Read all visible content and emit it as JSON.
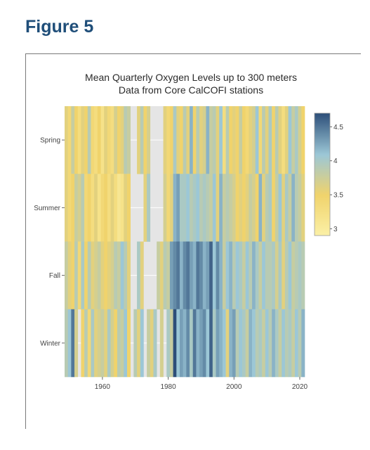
{
  "page": {
    "heading": "Figure 5"
  },
  "chart_data": {
    "type": "heatmap",
    "title": "Mean Quarterly Oxygen Levels up to 300 meters",
    "subtitle": "Data from Core CalCOFI stations",
    "xlabel": "",
    "ylabel": "",
    "rows": [
      "Spring",
      "Summer",
      "Fall",
      "Winter"
    ],
    "x_start": 1949,
    "x_end": 2021,
    "xlim": [
      1948.5,
      2021.5
    ],
    "x_ticks": [
      1960,
      1980,
      2000,
      2020
    ],
    "x_tick_labels": [
      "1960",
      "1980",
      "2000",
      "2020"
    ],
    "colorscale": [
      "#fbf0a6",
      "#f0d36c",
      "#9cc7d6",
      "#2d4f79"
    ],
    "colorbar": {
      "range": [
        2.9,
        4.7
      ],
      "ticks": [
        3,
        3.5,
        4,
        4.5
      ],
      "tick_labels": [
        "3",
        "3.5",
        "4",
        "4.5"
      ]
    },
    "missing_color": "#e5e5e5",
    "grid": true,
    "values": {
      "Spring": [
        3.6,
        3.4,
        3.8,
        3.5,
        3.3,
        3.6,
        3.5,
        3.9,
        3.4,
        3.3,
        3.5,
        3.2,
        3.6,
        3.4,
        3.3,
        3.7,
        3.5,
        3.6,
        3.9,
        3.8,
        null,
        null,
        3.6,
        3.9,
        3.5,
        3.7,
        null,
        null,
        null,
        null,
        3.6,
        3.4,
        3.5,
        4.0,
        3.6,
        3.5,
        3.9,
        3.6,
        4.2,
        3.5,
        3.9,
        3.6,
        3.7,
        4.2,
        3.8,
        3.9,
        3.6,
        4.1,
        3.3,
        3.9,
        3.5,
        3.6,
        3.5,
        3.8,
        3.5,
        3.4,
        3.6,
        3.7,
        4.1,
        3.4,
        3.9,
        3.6,
        4.0,
        3.5,
        3.9,
        3.6,
        3.3,
        3.6,
        4.1,
        3.8,
        4.0,
        3.7,
        3.5
      ],
      "Summer": [
        3.6,
        3.4,
        3.5,
        3.8,
        3.7,
        3.9,
        3.4,
        3.5,
        3.3,
        3.6,
        3.2,
        3.4,
        3.5,
        3.3,
        3.6,
        3.3,
        3.1,
        3.2,
        3.6,
        3.5,
        null,
        null,
        null,
        null,
        3.6,
        4.0,
        null,
        null,
        null,
        null,
        3.7,
        3.4,
        3.6,
        4.2,
        4.3,
        4.0,
        4.0,
        4.1,
        3.9,
        4.0,
        4.1,
        3.9,
        4.0,
        3.9,
        3.8,
        4.1,
        3.6,
        4.2,
        3.8,
        3.9,
        3.8,
        3.7,
        3.5,
        3.6,
        3.5,
        3.6,
        3.8,
        3.7,
        3.5,
        4.2,
        3.6,
        3.9,
        4.0,
        3.5,
        3.8,
        4.1,
        3.6,
        4.0,
        3.8,
        4.2,
        3.9,
        3.8,
        3.6
      ],
      "Fall": [
        3.8,
        3.6,
        3.5,
        3.9,
        3.4,
        4.0,
        3.5,
        3.9,
        3.6,
        3.7,
        3.8,
        3.6,
        3.5,
        3.6,
        3.7,
        3.9,
        3.8,
        4.1,
        3.9,
        3.6,
        null,
        null,
        4.0,
        3.6,
        null,
        null,
        null,
        null,
        3.8,
        3.6,
        3.9,
        3.8,
        4.3,
        4.4,
        4.5,
        4.2,
        4.4,
        4.5,
        4.3,
        4.2,
        4.5,
        4.4,
        4.2,
        4.3,
        4.6,
        4.1,
        4.4,
        4.2,
        3.8,
        4.1,
        4.2,
        3.9,
        4.1,
        4.0,
        3.8,
        4.1,
        3.9,
        4.2,
        4.0,
        3.8,
        4.1,
        3.9,
        3.9,
        4.0,
        3.7,
        4.0,
        3.6,
        3.9,
        4.1,
        3.8,
        3.9,
        4.0,
        3.9
      ],
      "Winter": [
        3.9,
        4.1,
        4.5,
        3.7,
        null,
        3.5,
        3.9,
        3.4,
        4.0,
        3.6,
        3.7,
        3.8,
        3.6,
        4.0,
        3.7,
        3.5,
        3.9,
        3.8,
        4.1,
        3.5,
        null,
        3.9,
        3.6,
        4.1,
        null,
        3.8,
        3.6,
        4.0,
        null,
        3.7,
        null,
        4.0,
        3.8,
        4.7,
        4.1,
        4.3,
        4.2,
        4.4,
        4.0,
        4.5,
        4.2,
        4.3,
        4.4,
        4.1,
        4.6,
        4.0,
        4.3,
        4.2,
        4.1,
        3.6,
        4.2,
        4.3,
        3.9,
        4.1,
        4.0,
        3.8,
        4.2,
        4.1,
        3.9,
        4.0,
        3.8,
        4.1,
        3.9,
        4.2,
        4.0,
        3.8,
        4.1,
        3.9,
        4.0,
        3.8,
        4.1,
        3.9,
        4.2
      ]
    }
  }
}
